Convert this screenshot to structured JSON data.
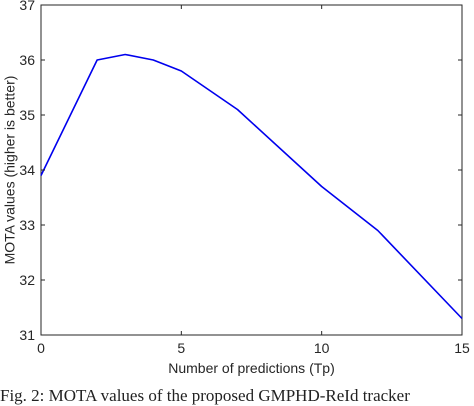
{
  "chart_data": {
    "type": "line",
    "title": "",
    "xlabel": "Number of predictions (Tp)",
    "ylabel": "MOTA values (higher is better)",
    "xlim": [
      0,
      15
    ],
    "ylim": [
      31,
      37
    ],
    "xticks": [
      "0",
      "5",
      "10",
      "15"
    ],
    "yticks": [
      "31",
      "32",
      "33",
      "34",
      "35",
      "36",
      "37"
    ],
    "grid": false,
    "legend": "none",
    "line_color": "#0000ee",
    "series": [
      {
        "x": [
          0,
          2,
          3,
          4,
          5,
          7,
          10,
          12,
          15
        ],
        "y": [
          33.9,
          36.0,
          36.1,
          36.0,
          35.8,
          35.1,
          33.7,
          32.9,
          31.3
        ]
      }
    ]
  },
  "caption": "Fig. 2: MOTA values of the proposed GMPHD-ReId tracker"
}
